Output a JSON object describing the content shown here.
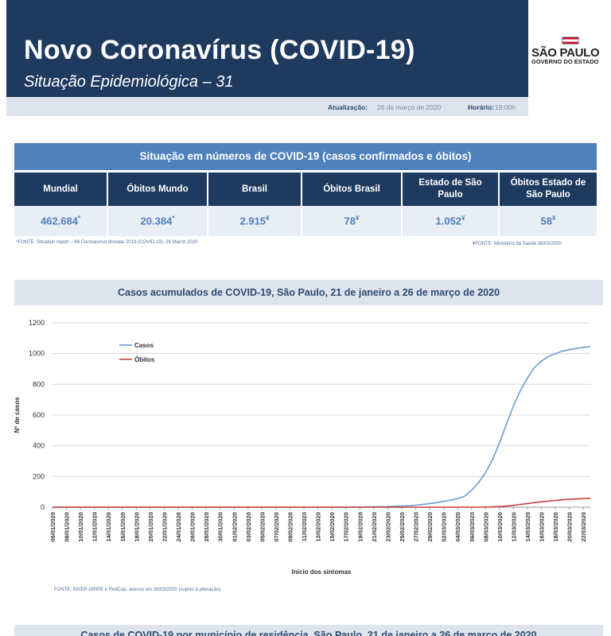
{
  "header": {
    "title": "Novo Coronavírus (COVID-19)",
    "subtitle": "Situação Epidemiológica – 31"
  },
  "logo": {
    "main": "SÃO PAULO",
    "sub": "GOVERNO DO ESTADO"
  },
  "update": {
    "date_label": "Atualização:",
    "date_value": "26 de março de 2020",
    "time_label": "Horário:",
    "time_value": "19:00h"
  },
  "table": {
    "title": "Situação em números de COVID-19 (casos confirmados e óbitos)",
    "columns": [
      {
        "header": "Mundial",
        "value": "462.684",
        "mark": "*"
      },
      {
        "header": "Óbitos Mundo",
        "value": "20.384",
        "mark": "*"
      },
      {
        "header": "Brasil",
        "value": "2.915",
        "mark": "¥"
      },
      {
        "header": "Óbitos Brasil",
        "value": "78",
        "mark": "¥"
      },
      {
        "header": "Estado de São Paulo",
        "value": "1.052",
        "mark": "¥"
      },
      {
        "header": "Óbitos Estado de São Paulo",
        "value": "58",
        "mark": "¥"
      }
    ],
    "footnote_left": "*FONTE: Situation report – 66 Coronavirus disease 2019 (COVID-19)- 26 March 2020",
    "footnote_right": "¥FONTE: Ministério da Saúde 26/03/2020"
  },
  "chart_section": {
    "title": "Casos acumulados de COVID-19, São Paulo, 21 de janeiro a 26 de março de 2020",
    "source": "FONTE: SIVEP-GRIPE e RedCap, acesso em 26/03/2020 (sujeito à alteração)."
  },
  "chart_data": {
    "type": "line",
    "title": "Casos acumulados de COVID-19, São Paulo, 21 de janeiro a 26 de março de 2020",
    "xlabel": "Início dos sintomas",
    "ylabel": "Nº de casos",
    "ylim": [
      0,
      1200
    ],
    "yticks": [
      0,
      200,
      400,
      600,
      800,
      1000,
      1200
    ],
    "grid": true,
    "legend_position": "top-left",
    "x": [
      "06/01/2020",
      "07/01/2020",
      "08/01/2020",
      "09/01/2020",
      "10/01/2020",
      "11/01/2020",
      "12/01/2020",
      "13/01/2020",
      "14/01/2020",
      "15/01/2020",
      "16/01/2020",
      "17/01/2020",
      "18/01/2020",
      "19/01/2020",
      "20/01/2020",
      "21/01/2020",
      "22/01/2020",
      "23/01/2020",
      "24/01/2020",
      "25/01/2020",
      "26/01/2020",
      "27/01/2020",
      "28/01/2020",
      "29/01/2020",
      "30/01/2020",
      "31/01/2020",
      "01/02/2020",
      "02/02/2020",
      "03/02/2020",
      "04/02/2020",
      "05/02/2020",
      "06/02/2020",
      "07/02/2020",
      "08/02/2020",
      "09/02/2020",
      "10/02/2020",
      "11/02/2020",
      "12/02/2020",
      "13/02/2020",
      "14/02/2020",
      "15/02/2020",
      "16/02/2020",
      "17/02/2020",
      "18/02/2020",
      "19/02/2020",
      "20/02/2020",
      "21/02/2020",
      "22/02/2020",
      "23/02/2020",
      "24/02/2020",
      "25/02/2020",
      "26/02/2020",
      "27/02/2020",
      "28/02/2020",
      "29/02/2020",
      "01/03/2020",
      "02/03/2020",
      "03/03/2020",
      "04/03/2020",
      "05/03/2020",
      "06/03/2020",
      "07/03/2020",
      "08/03/2020",
      "09/03/2020",
      "10/03/2020",
      "11/03/2020",
      "12/03/2020",
      "13/03/2020",
      "14/03/2020",
      "15/03/2020",
      "16/03/2020",
      "17/03/2020",
      "18/03/2020",
      "19/03/2020",
      "20/03/2020",
      "21/03/2020",
      "22/03/2020",
      "23/03/2020"
    ],
    "x_tick_labels": [
      "06/01/2020",
      "08/01/2020",
      "10/01/2020",
      "12/01/2020",
      "14/01/2020",
      "16/01/2020",
      "18/01/2020",
      "20/01/2020",
      "22/01/2020",
      "24/01/2020",
      "26/01/2020",
      "28/01/2020",
      "30/01/2020",
      "01/02/2020",
      "03/02/2020",
      "05/02/2020",
      "07/02/2020",
      "09/02/2020",
      "11/02/2020",
      "13/02/2020",
      "15/02/2020",
      "17/02/2020",
      "19/02/2020",
      "21/02/2020",
      "23/02/2020",
      "25/02/2020",
      "27/02/2020",
      "29/02/2020",
      "02/03/2020",
      "04/03/2020",
      "06/03/2020",
      "08/03/2020",
      "10/03/2020",
      "12/03/2020",
      "14/03/2020",
      "16/03/2020",
      "18/03/2020",
      "20/03/2020",
      "22/03/2020"
    ],
    "series": [
      {
        "name": "Casos",
        "color": "#6a9bd1",
        "values": [
          0,
          0,
          0,
          0,
          0,
          0,
          0,
          0,
          0,
          0,
          0,
          0,
          0,
          0,
          0,
          0,
          0,
          0,
          0,
          0,
          0,
          0,
          0,
          0,
          0,
          0,
          0,
          0,
          0,
          0,
          0,
          0,
          0,
          0,
          0,
          0,
          0,
          0,
          0,
          0,
          0,
          0,
          0,
          1,
          1,
          2,
          2,
          3,
          4,
          6,
          8,
          10,
          13,
          18,
          24,
          30,
          38,
          46,
          56,
          72,
          110,
          160,
          225,
          310,
          420,
          540,
          660,
          760,
          840,
          910,
          950,
          980,
          1000,
          1015,
          1025,
          1033,
          1040,
          1045
        ]
      },
      {
        "name": "Óbitos",
        "color": "#c9413a",
        "values": [
          0,
          0,
          0,
          0,
          0,
          0,
          0,
          0,
          0,
          0,
          0,
          0,
          0,
          0,
          0,
          0,
          0,
          0,
          0,
          0,
          0,
          0,
          0,
          0,
          0,
          0,
          0,
          0,
          0,
          0,
          0,
          0,
          0,
          0,
          0,
          0,
          0,
          0,
          0,
          0,
          0,
          0,
          0,
          0,
          0,
          0,
          0,
          0,
          0,
          0,
          0,
          0,
          0,
          0,
          0,
          0,
          0,
          0,
          0,
          0,
          0,
          0,
          1,
          2,
          4,
          8,
          12,
          18,
          24,
          30,
          35,
          40,
          44,
          48,
          52,
          54,
          56,
          58
        ]
      }
    ]
  },
  "bottom": {
    "title": "Casos de COVID-19 por município de residência, São Paulo, 21 de janeiro a 26 de março de 2020"
  }
}
